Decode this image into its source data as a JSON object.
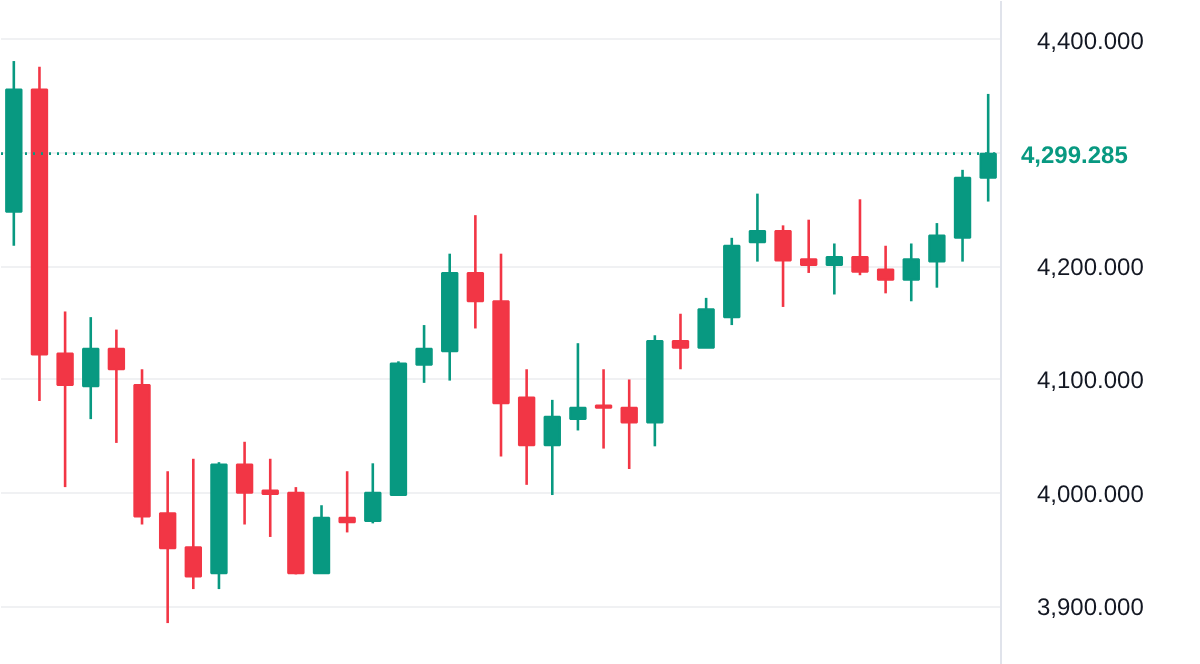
{
  "chart_data": {
    "type": "candlestick",
    "categories": [
      null,
      null,
      null,
      null,
      null,
      null,
      null,
      null,
      null,
      null,
      null,
      null,
      null,
      null,
      null,
      null,
      null,
      null,
      null,
      null,
      null,
      null,
      null,
      null,
      null,
      null,
      null,
      null,
      null,
      null,
      null,
      null,
      null,
      null,
      null,
      null,
      null,
      null,
      null
    ],
    "ohlc": [
      [
        4248,
        4381,
        4218,
        4356
      ],
      [
        4356,
        4376,
        4081,
        4122
      ],
      [
        4123,
        4160,
        4005,
        4095
      ],
      [
        4094,
        4155,
        4065,
        4127
      ],
      [
        4127,
        4144,
        4044,
        4109
      ],
      [
        4095,
        4109,
        3972,
        3979
      ],
      [
        3982,
        4019,
        3885,
        3951
      ],
      [
        3952,
        4030,
        3915,
        3926
      ],
      [
        3929,
        4027,
        3915,
        4025
      ],
      [
        4025,
        4045,
        3972,
        4000
      ],
      [
        4002,
        4030,
        3961,
        3999
      ],
      [
        4000,
        4005,
        3928,
        3929
      ],
      [
        3929,
        3989,
        3929,
        3978
      ],
      [
        3978,
        4019,
        3965,
        3974
      ],
      [
        3975,
        4026,
        3973,
        4000
      ],
      [
        3998,
        4116,
        3998,
        4114
      ],
      [
        4113,
        4148,
        4097,
        4127
      ],
      [
        4125,
        4211,
        4099,
        4194
      ],
      [
        4194,
        4245,
        4145,
        4169
      ],
      [
        4169,
        4211,
        4032,
        4079
      ],
      [
        4084,
        4109,
        4007,
        4042
      ],
      [
        4042,
        4082,
        3998,
        4067
      ],
      [
        4065,
        4132,
        4055,
        4075
      ],
      [
        4077,
        4109,
        4039,
        4075
      ],
      [
        4075,
        4100,
        4021,
        4062
      ],
      [
        4062,
        4139,
        4041,
        4134
      ],
      [
        4134,
        4158,
        4109,
        4128
      ],
      [
        4128,
        4172,
        4128,
        4162
      ],
      [
        4155,
        4225,
        4148,
        4218
      ],
      [
        4221,
        4264,
        4204,
        4231
      ],
      [
        4231,
        4236,
        4164,
        4205
      ],
      [
        4206,
        4241,
        4194,
        4201
      ],
      [
        4201,
        4220,
        4175,
        4208
      ],
      [
        4208,
        4259,
        4192,
        4195
      ],
      [
        4197,
        4218,
        4176,
        4188
      ],
      [
        4188,
        4220,
        4169,
        4206
      ],
      [
        4204,
        4238,
        4181,
        4227
      ],
      [
        4225,
        4285,
        4204,
        4278
      ],
      [
        4278,
        4352,
        4257,
        4299.285
      ]
    ],
    "colors": [
      "#089981",
      "#f23645",
      "#f23645",
      "#089981",
      "#f23645",
      "#f23645",
      "#f23645",
      "#f23645",
      "#089981",
      "#f23645",
      "#f23645",
      "#f23645",
      "#089981",
      "#f23645",
      "#089981",
      "#089981",
      "#089981",
      "#089981",
      "#f23645",
      "#f23645",
      "#f23645",
      "#089981",
      "#089981",
      "#f23645",
      "#f23645",
      "#089981",
      "#f23645",
      "#089981",
      "#089981",
      "#089981",
      "#f23645",
      "#f23645",
      "#089981",
      "#f23645",
      "#f23645",
      "#089981",
      "#089981",
      "#089981",
      "#089981"
    ],
    "ylim": [
      3848,
      4434
    ],
    "yticks": [
      {
        "value": 3900,
        "label": "3,900.000"
      },
      {
        "value": 4000,
        "label": "4,000.000"
      },
      {
        "value": 4100,
        "label": "4,100.000"
      },
      {
        "value": 4200,
        "label": "4,200.000"
      },
      {
        "value": 4300,
        "label": null
      },
      {
        "value": 4400,
        "label": "4,400.000"
      }
    ],
    "tick_labels": "y",
    "grid": "y",
    "ref_lines": [
      {
        "axis": "y",
        "value": 4299.285,
        "label": "4,299.285",
        "color": "#089981",
        "line_style": "dotted"
      }
    ]
  }
}
